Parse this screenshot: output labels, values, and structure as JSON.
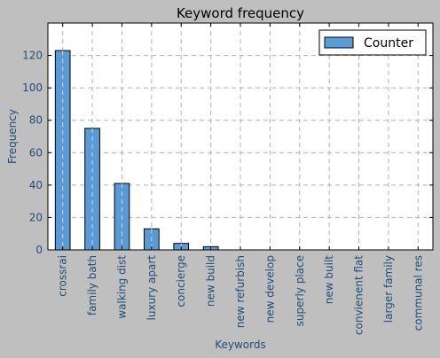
{
  "chart_data": {
    "type": "bar",
    "title": "Keyword frequency",
    "xlabel": "Keywords",
    "ylabel": "Frequency",
    "categories": [
      "crossrai",
      "family bath",
      "walking dist",
      "luxury apart",
      "concierge",
      "new build",
      "new refurbish",
      "new develop",
      "superly place",
      "new built",
      "convienent flat",
      "larger family",
      "communal res"
    ],
    "series": [
      {
        "name": "Counter",
        "values": [
          123,
          75,
          41,
          13,
          4,
          2,
          0,
          0,
          0,
          0,
          0,
          0,
          0
        ],
        "color": "#5b9bd5"
      }
    ],
    "ylim": [
      0,
      140
    ],
    "yticks": [
      0,
      20,
      40,
      60,
      80,
      100,
      120
    ],
    "grid": true,
    "legend": "top-right"
  }
}
